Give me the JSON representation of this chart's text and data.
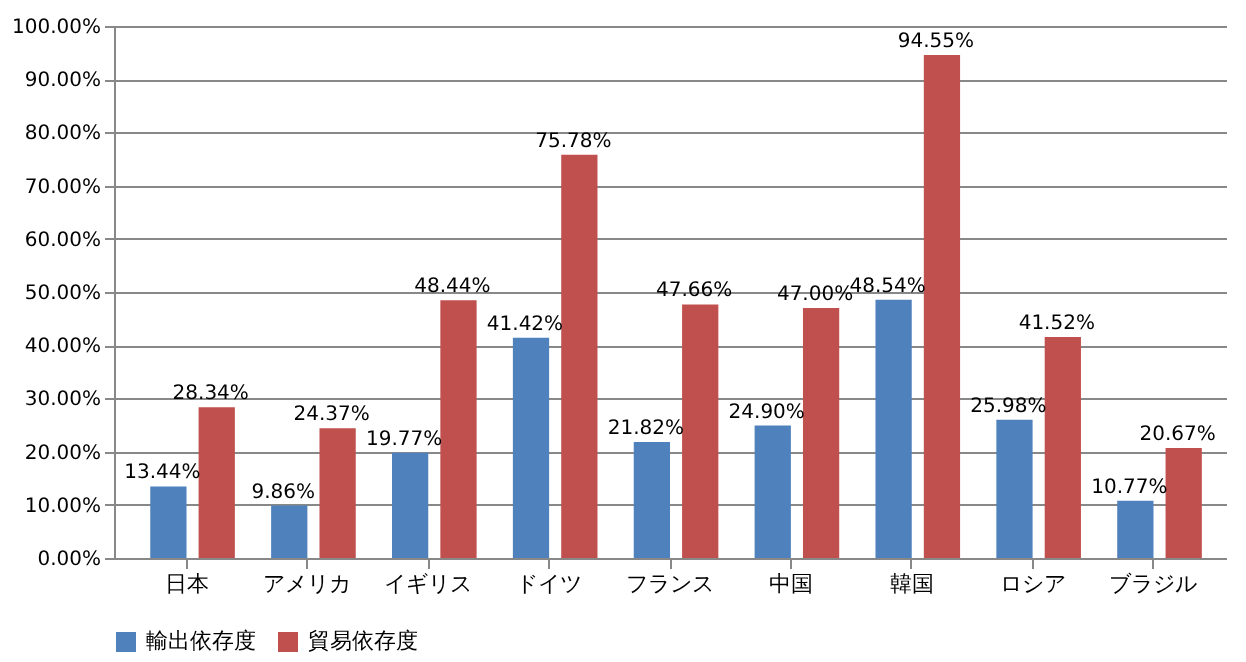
{
  "chart_data": {
    "type": "bar",
    "categories": [
      "日本",
      "アメリカ",
      "イギリス",
      "ドイツ",
      "フランス",
      "中国",
      "韓国",
      "ロシア",
      "ブラジル"
    ],
    "series": [
      {
        "name": "輸出依存度",
        "color": "#4f81bd",
        "values": [
          13.44,
          9.86,
          19.77,
          41.42,
          21.82,
          24.9,
          48.54,
          25.98,
          10.77
        ],
        "value_labels": [
          "13.44%",
          "9.86%",
          "19.77%",
          "41.42%",
          "21.82%",
          "24.90%",
          "48.54%",
          "25.98%",
          "10.77%"
        ]
      },
      {
        "name": "貿易依存度",
        "color": "#c0504d",
        "values": [
          28.34,
          24.37,
          48.44,
          75.78,
          47.66,
          47.0,
          94.55,
          41.52,
          20.67
        ],
        "value_labels": [
          "28.34%",
          "24.37%",
          "48.44%",
          "75.78%",
          "47.66%",
          "47.00%",
          "94.55%",
          "41.52%",
          "20.67%"
        ]
      }
    ],
    "ylim": [
      0,
      100
    ],
    "yticks": [
      {
        "value": 0,
        "label": "0.00%"
      },
      {
        "value": 10,
        "label": "10.00%"
      },
      {
        "value": 20,
        "label": "20.00%"
      },
      {
        "value": 30,
        "label": "30.00%"
      },
      {
        "value": 40,
        "label": "40.00%"
      },
      {
        "value": 50,
        "label": "50.00%"
      },
      {
        "value": 60,
        "label": "60.00%"
      },
      {
        "value": 70,
        "label": "70.00%"
      },
      {
        "value": 80,
        "label": "80.00%"
      },
      {
        "value": 90,
        "label": "90.00%"
      },
      {
        "value": 100,
        "label": "100.00%"
      }
    ],
    "grid": "y",
    "legend": "bottom"
  }
}
